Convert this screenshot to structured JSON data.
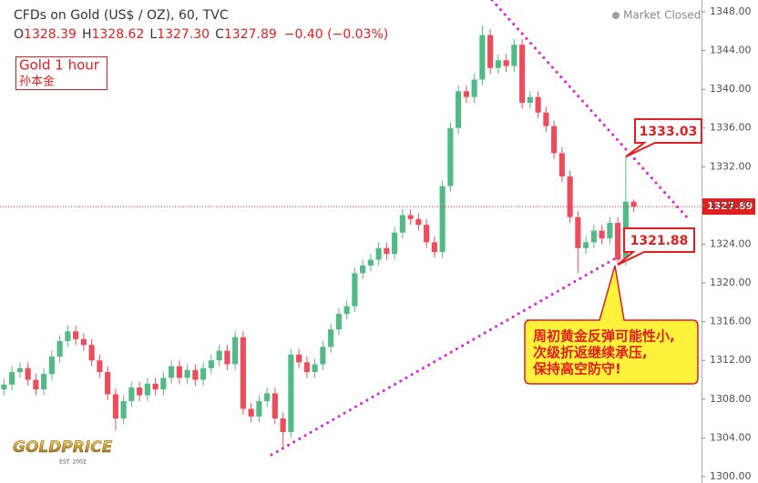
{
  "chart_data": {
    "type": "candlestick",
    "title": "CFDs on Gold (US$ / OZ), 60, TVC",
    "ohlc": [
      {
        "key": "O",
        "value": 1328.39
      },
      {
        "key": "H",
        "value": 1328.62
      },
      {
        "key": "L",
        "value": 1327.3,
        "label": "1327.30"
      },
      {
        "key": "C",
        "value": 1327.89
      }
    ],
    "change": "−0.40 (−0.03%)",
    "status": "Market Closed",
    "note_title": "Gold 1 hour",
    "note_author": "孙本金",
    "callout": [
      "周初黄金反弹可能性小,",
      "次级折返继续承压,",
      "保持高空防守!"
    ],
    "logo": "GOLDPRICE",
    "logo_sub": "EST. 2002",
    "up_color": "#53b987",
    "down_color": "#eb4d5c",
    "last_price": 1327.89,
    "annotations": [
      {
        "value": 1333.03
      },
      {
        "value": 1321.88
      }
    ],
    "ylim": [
      1299.34,
      1349.22
    ],
    "yticks": [
      {
        "value": 1300,
        "label": "1300.00"
      },
      {
        "value": 1304,
        "label": "1304.00"
      },
      {
        "value": 1308,
        "label": "1308.00"
      },
      {
        "value": 1312,
        "label": "1312.00"
      },
      {
        "value": 1316,
        "label": "1316.00"
      },
      {
        "value": 1320,
        "label": "1320.00"
      },
      {
        "value": 1324,
        "label": "1324.00"
      },
      {
        "value": 1328,
        "label": "1328.00"
      },
      {
        "value": 1332,
        "label": "1332.00"
      },
      {
        "value": 1336,
        "label": "1336.00"
      },
      {
        "value": 1340,
        "label": "1340.00"
      },
      {
        "value": 1344,
        "label": "1344.00"
      },
      {
        "value": 1348,
        "label": "1348.00"
      }
    ],
    "open": [
      1309.0,
      1309.5,
      1310.8,
      1311.2,
      1310.0,
      1309.0,
      1310.6,
      1312.4,
      1314.0,
      1315.0,
      1314.2,
      1313.6,
      1312.0,
      1310.8,
      1308.5,
      1306.0,
      1307.8,
      1309.2,
      1308.4,
      1309.6,
      1309.0,
      1310.2,
      1311.4,
      1310.2,
      1311.0,
      1310.0,
      1311.2,
      1312.0,
      1313.0,
      1311.6,
      1314.4,
      1307.0,
      1306.2,
      1307.8,
      1308.6,
      1306.0,
      1304.6,
      1312.6,
      1311.8,
      1310.8,
      1311.6,
      1313.4,
      1315.2,
      1316.8,
      1317.6,
      1321.0,
      1321.8,
      1322.4,
      1323.6,
      1323.0,
      1325.2,
      1327.0,
      1326.6,
      1326.0,
      1324.2,
      1323.2,
      1330.0,
      1336.0,
      1339.8,
      1339.2,
      1341.0,
      1345.6,
      1342.2,
      1343.0,
      1342.4,
      1344.6,
      1338.6,
      1339.2,
      1337.6,
      1336.2,
      1333.4,
      1331.0,
      1326.8,
      1323.6,
      1324.2,
      1325.4,
      1324.6,
      1326.2,
      1322.4,
      1328.39
    ],
    "high": [
      1310.1,
      1311.4,
      1311.8,
      1311.8,
      1310.6,
      1311.2,
      1313.0,
      1314.6,
      1315.6,
      1315.6,
      1314.8,
      1314.2,
      1312.6,
      1311.4,
      1309.1,
      1308.4,
      1309.8,
      1309.8,
      1310.2,
      1310.2,
      1310.8,
      1312.0,
      1312.0,
      1311.6,
      1311.6,
      1311.8,
      1312.6,
      1313.6,
      1313.6,
      1315.0,
      1315.0,
      1307.6,
      1308.4,
      1309.2,
      1309.2,
      1306.6,
      1313.2,
      1313.2,
      1312.4,
      1312.2,
      1314.0,
      1315.8,
      1317.4,
      1318.2,
      1321.6,
      1322.4,
      1323.0,
      1324.2,
      1324.2,
      1325.8,
      1327.6,
      1327.6,
      1327.2,
      1326.6,
      1324.8,
      1330.6,
      1336.6,
      1340.4,
      1340.4,
      1341.6,
      1346.6,
      1346.2,
      1343.6,
      1343.6,
      1345.2,
      1345.2,
      1339.8,
      1339.8,
      1338.2,
      1336.8,
      1334.0,
      1331.6,
      1327.4,
      1324.8,
      1326.0,
      1326.0,
      1326.8,
      1326.8,
      1333.03,
      1328.62
    ],
    "low": [
      1308.4,
      1308.9,
      1310.2,
      1309.4,
      1308.4,
      1308.4,
      1310.0,
      1311.8,
      1313.4,
      1313.6,
      1313.0,
      1311.4,
      1310.2,
      1307.9,
      1304.8,
      1305.4,
      1307.2,
      1307.8,
      1307.8,
      1308.4,
      1308.4,
      1309.6,
      1309.6,
      1309.6,
      1309.4,
      1309.4,
      1310.6,
      1311.4,
      1311.0,
      1311.0,
      1306.4,
      1305.6,
      1305.6,
      1307.2,
      1305.4,
      1303.0,
      1304.0,
      1311.2,
      1310.2,
      1310.2,
      1311.0,
      1312.8,
      1314.6,
      1316.2,
      1317.0,
      1320.4,
      1321.2,
      1321.8,
      1322.4,
      1322.4,
      1324.6,
      1326.0,
      1325.4,
      1323.6,
      1322.6,
      1322.6,
      1329.4,
      1335.4,
      1338.6,
      1338.6,
      1340.4,
      1341.6,
      1341.6,
      1341.8,
      1341.8,
      1338.0,
      1338.0,
      1337.0,
      1335.6,
      1332.8,
      1330.4,
      1326.2,
      1321.0,
      1323.0,
      1323.6,
      1324.0,
      1324.0,
      1321.88,
      1321.8,
      1327.3
    ],
    "close": [
      1309.5,
      1310.8,
      1311.2,
      1310.0,
      1309.0,
      1310.6,
      1312.4,
      1314.0,
      1315.0,
      1314.2,
      1313.6,
      1312.0,
      1310.8,
      1308.5,
      1306.0,
      1307.8,
      1309.2,
      1308.4,
      1309.6,
      1309.0,
      1310.2,
      1311.4,
      1310.2,
      1311.0,
      1310.0,
      1311.2,
      1312.0,
      1313.0,
      1311.6,
      1314.4,
      1307.0,
      1306.2,
      1307.8,
      1308.6,
      1306.0,
      1304.6,
      1312.6,
      1311.8,
      1310.8,
      1311.6,
      1313.4,
      1315.2,
      1316.8,
      1317.6,
      1321.0,
      1321.8,
      1322.4,
      1323.6,
      1323.0,
      1325.2,
      1327.0,
      1326.6,
      1326.0,
      1324.2,
      1323.2,
      1330.0,
      1336.0,
      1339.8,
      1339.2,
      1341.0,
      1345.6,
      1342.2,
      1343.0,
      1342.4,
      1344.6,
      1338.6,
      1339.2,
      1337.6,
      1336.2,
      1333.4,
      1331.0,
      1326.8,
      1323.6,
      1324.2,
      1325.4,
      1324.6,
      1326.2,
      1322.4,
      1328.39,
      1327.89
    ]
  }
}
